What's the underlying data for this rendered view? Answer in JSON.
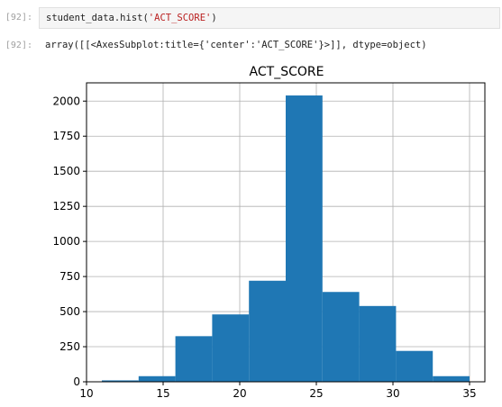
{
  "cells": {
    "input": {
      "prompt": "[92]:",
      "code_prefix": "student_data.hist(",
      "code_string": "'ACT_SCORE'",
      "code_suffix": ")"
    },
    "output": {
      "prompt": "[92]:",
      "text": "array([[<AxesSubplot:title={'center':'ACT_SCORE'}>]], dtype=object)"
    }
  },
  "chart_data": {
    "type": "bar",
    "title": "ACT_SCORE",
    "xlabel": "",
    "ylabel": "",
    "xlim": [
      10,
      36
    ],
    "ylim": [
      0,
      2130
    ],
    "xticks": [
      10,
      15,
      20,
      25,
      30,
      35
    ],
    "yticks": [
      0,
      250,
      500,
      750,
      1000,
      1250,
      1500,
      1750,
      2000
    ],
    "grid": true,
    "bar_color": "#1f77b4",
    "bins": [
      {
        "x0": 11.0,
        "x1": 13.4,
        "value": 10
      },
      {
        "x0": 13.4,
        "x1": 15.8,
        "value": 40
      },
      {
        "x0": 15.8,
        "x1": 18.2,
        "value": 325
      },
      {
        "x0": 18.2,
        "x1": 20.6,
        "value": 480
      },
      {
        "x0": 20.6,
        "x1": 23.0,
        "value": 720
      },
      {
        "x0": 23.0,
        "x1": 25.4,
        "value": 2040
      },
      {
        "x0": 25.4,
        "x1": 27.8,
        "value": 640
      },
      {
        "x0": 27.8,
        "x1": 30.2,
        "value": 540
      },
      {
        "x0": 30.2,
        "x1": 32.6,
        "value": 220
      },
      {
        "x0": 32.6,
        "x1": 35.0,
        "value": 40
      }
    ]
  }
}
